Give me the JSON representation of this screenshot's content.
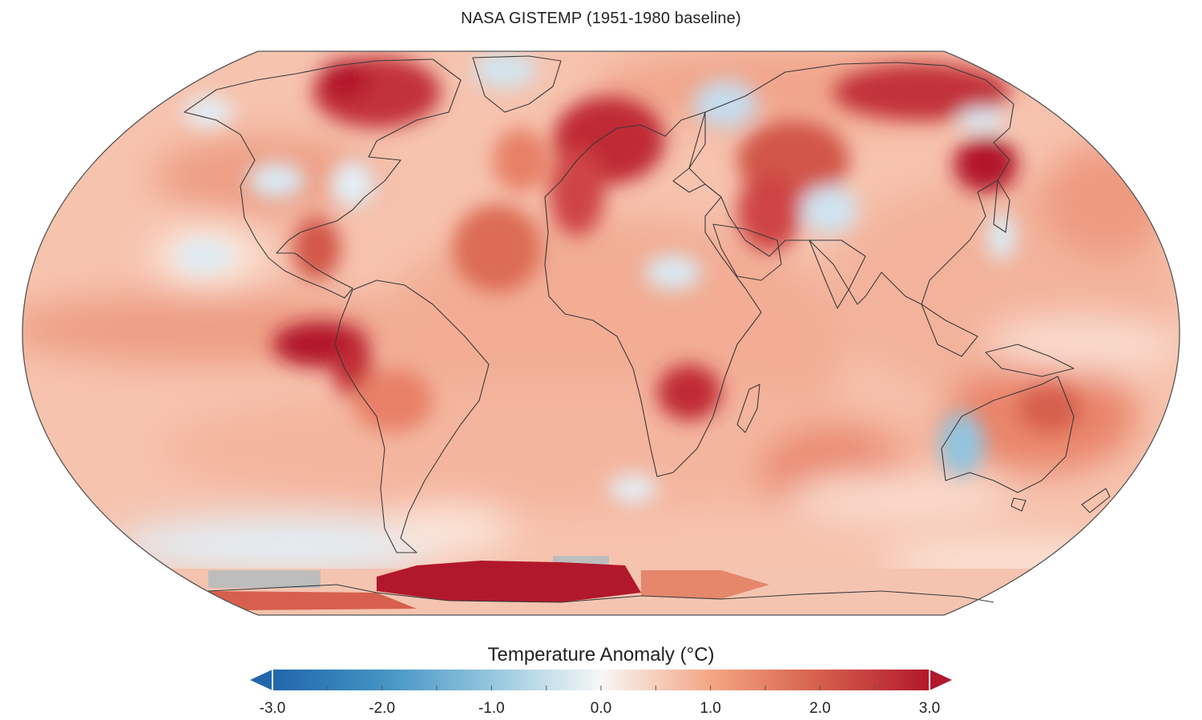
{
  "map": {
    "subtitle": "NASA GISTEMP (1951-1980 baseline)",
    "projection": "robinson-like",
    "no_data_color": "#bdbdbd",
    "coastline_color": "#3a3a3a"
  },
  "colorbar": {
    "title": "Temperature Anomaly (°C)",
    "min": -3.0,
    "max": 3.0,
    "tick_labels": [
      "-3.0",
      "-2.0",
      "-1.0",
      "0.0",
      "1.0",
      "2.0",
      "3.0"
    ],
    "colors": {
      "cold_extreme": "#2166ac",
      "cold": "#67a9cf",
      "cool": "#d1e5f0",
      "neutral": "#f7f7f7",
      "warm": "#fddbc7",
      "hot": "#ef8a62",
      "hot_extreme": "#b2182b"
    }
  }
}
